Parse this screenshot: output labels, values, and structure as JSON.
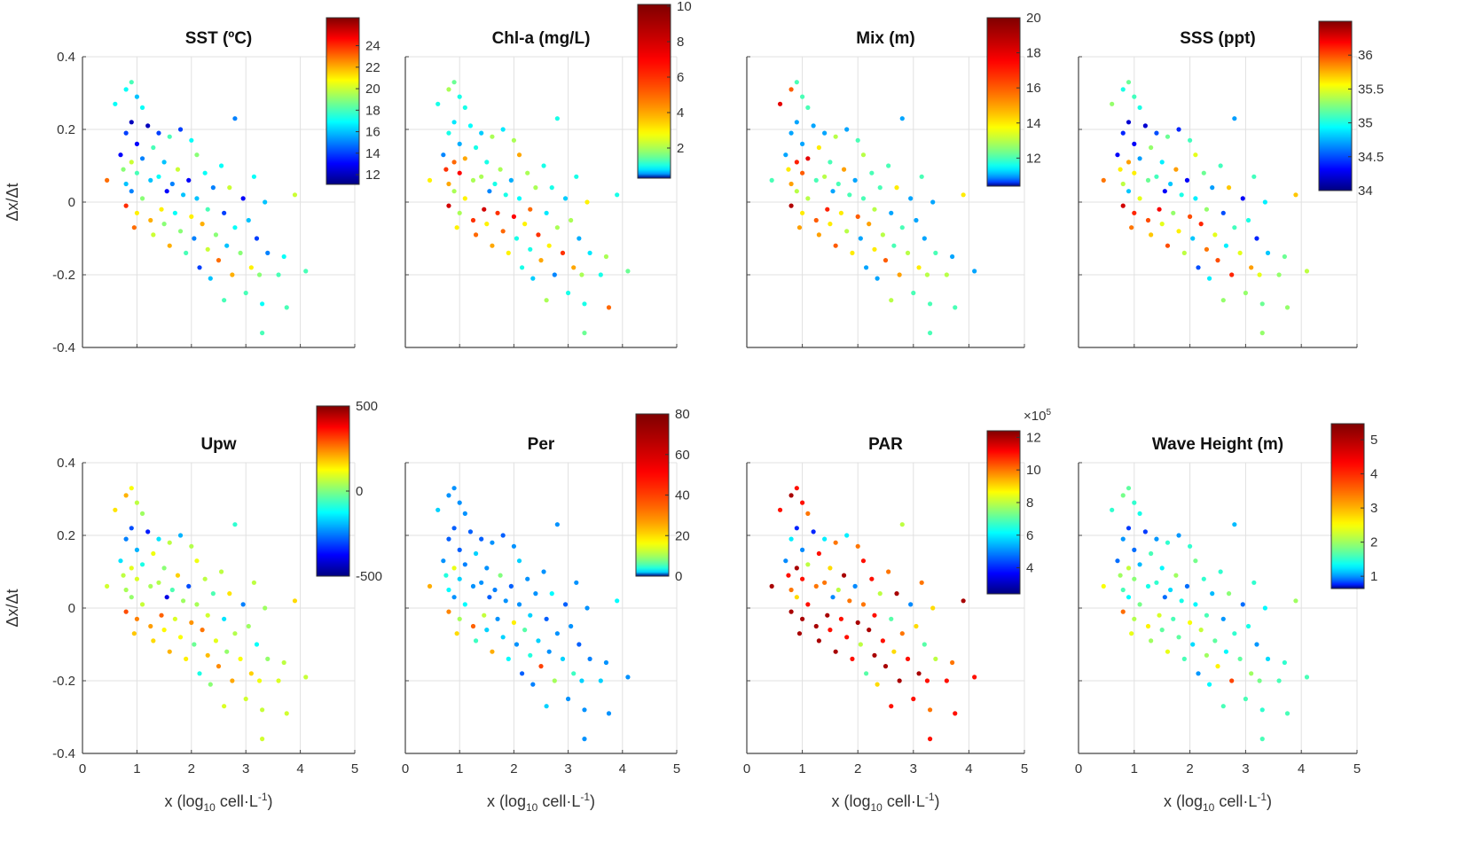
{
  "chart_data": [
    {
      "type": "scatter",
      "title": "SST (ºC)",
      "colorbar_ticks": [
        12,
        14,
        16,
        18,
        20,
        22,
        24
      ],
      "clim": [
        11.1,
        26.6
      ],
      "values": [
        23,
        17,
        13,
        19,
        17,
        14,
        16,
        24,
        18,
        12,
        20,
        15,
        23,
        16,
        13,
        18,
        21,
        17,
        15,
        19,
        12,
        16,
        22,
        18,
        20,
        14,
        17,
        21,
        16,
        19,
        13,
        18,
        22,
        15,
        17,
        20,
        14,
        19,
        16,
        18,
        13,
        17,
        21,
        15,
        19,
        16,
        14,
        22,
        17,
        18,
        20,
        16,
        15,
        19,
        23,
        17,
        14,
        18,
        16,
        20,
        22,
        15,
        17,
        19,
        13,
        18,
        16,
        21,
        17,
        14,
        19,
        17,
        18,
        16,
        15,
        18,
        17,
        18,
        20,
        18
      ]
    },
    {
      "type": "scatter",
      "title": "Chl-a (mg/L)",
      "colorbar_ticks": [
        2,
        4,
        6,
        8,
        10
      ],
      "clim": [
        0.3,
        10.1
      ],
      "values": [
        3,
        1,
        0.5,
        6,
        2,
        1,
        4,
        8,
        1.5,
        0.8,
        5,
        2,
        3,
        1,
        0.6,
        7,
        2,
        1,
        4,
        3,
        0.9,
        2,
        6,
        1,
        5,
        0.7,
        2,
        8,
        1,
        3,
        0.5,
        2,
        4,
        1,
        6,
        2,
        0.8,
        5,
        1,
        3,
        0.6,
        2,
        7,
        1,
        4,
        0.9,
        1,
        3,
        2,
        5,
        1,
        0.7,
        2,
        6,
        4,
        1,
        0.8,
        2,
        3,
        1,
        0.5,
        1,
        2,
        6,
        0.7,
        1,
        2,
        4,
        1,
        0.6,
        2,
        1,
        1.5,
        3,
        0.8,
        1,
        2,
        5,
        1,
        1.5
      ]
    },
    {
      "type": "scatter",
      "title": "Mix (m)",
      "colorbar_ticks": [
        12,
        14,
        16,
        18,
        20
      ],
      "clim": [
        10.4,
        20
      ],
      "values": [
        12,
        18,
        11,
        14,
        16,
        11,
        15,
        19,
        12,
        11,
        17,
        13,
        15,
        12,
        11,
        16,
        14,
        12,
        18,
        13,
        11,
        12,
        16,
        14,
        15,
        11,
        13,
        17,
        12,
        14,
        11,
        13,
        16,
        12,
        14,
        15,
        11,
        13,
        12,
        14,
        11,
        12,
        16,
        11,
        13,
        12,
        11,
        15,
        12,
        13,
        14,
        11,
        12,
        13,
        16,
        12,
        11,
        13,
        12,
        14,
        15,
        11,
        12,
        13,
        11,
        12,
        11,
        14,
        12,
        11,
        13,
        12,
        12,
        11,
        12,
        13,
        11,
        12,
        14,
        11
      ]
    },
    {
      "type": "scatter",
      "title": "SSS (ppt)",
      "colorbar_ticks": [
        34,
        34.5,
        35,
        35.5,
        36
      ],
      "clim": [
        34,
        36.5
      ],
      "values": [
        35.9,
        35.3,
        34.3,
        35.6,
        35.0,
        34.4,
        35.4,
        36.3,
        35.2,
        34.2,
        35.8,
        34.8,
        35.9,
        35.1,
        34.3,
        35.6,
        36.1,
        35.0,
        34.7,
        35.5,
        34.2,
        35.2,
        36.0,
        35.3,
        35.7,
        34.5,
        35.1,
        36.2,
        34.9,
        35.5,
        34.3,
        35.2,
        36.0,
        34.8,
        35.3,
        35.8,
        34.4,
        35.6,
        35.0,
        35.4,
        34.3,
        35.1,
        36.0,
        34.8,
        35.5,
        34.9,
        34.5,
        36.1,
        35.2,
        35.3,
        35.9,
        34.9,
        34.7,
        35.5,
        36.0,
        35.1,
        34.5,
        35.3,
        34.9,
        35.7,
        36.1,
        34.7,
        35.1,
        35.5,
        34.3,
        35.3,
        35.0,
        35.8,
        35.1,
        34.4,
        35.5,
        35.2,
        35.3,
        34.9,
        34.8,
        35.3,
        35.2,
        35.3,
        35.7,
        35.4
      ]
    },
    {
      "type": "scatter",
      "title": "Upw",
      "colorbar_ticks": [
        -500,
        0,
        500
      ],
      "clim": [
        -500,
        500
      ],
      "values": [
        80,
        150,
        -150,
        60,
        200,
        -250,
        40,
        300,
        120,
        -300,
        100,
        20,
        180,
        60,
        -200,
        90,
        250,
        30,
        -100,
        70,
        -350,
        40,
        220,
        110,
        160,
        -150,
        50,
        280,
        10,
        130,
        -400,
        60,
        200,
        -50,
        90,
        170,
        -200,
        120,
        30,
        140,
        -300,
        50,
        230,
        -20,
        110,
        40,
        -100,
        260,
        60,
        80,
        190,
        10,
        -50,
        100,
        240,
        60,
        -150,
        90,
        20,
        150,
        210,
        -80,
        50,
        120,
        -250,
        80,
        30,
        170,
        60,
        -120,
        110,
        70,
        80,
        30,
        20,
        90,
        60,
        80,
        160,
        70
      ]
    },
    {
      "type": "scatter",
      "title": "Per",
      "colorbar_ticks": [
        0,
        20,
        40,
        60,
        80
      ],
      "clim": [
        0,
        80
      ],
      "values": [
        25,
        2,
        1,
        4,
        1,
        0.5,
        3,
        30,
        1,
        0.5,
        15,
        1,
        20,
        1,
        0.5,
        2,
        10,
        1,
        0.8,
        3,
        0.5,
        1,
        35,
        2,
        5,
        0.5,
        1,
        12,
        1,
        2,
        0.5,
        1,
        25,
        0.8,
        1,
        8,
        0.5,
        2,
        1,
        3,
        0.5,
        1,
        18,
        1,
        2,
        1,
        0.5,
        6,
        1,
        2,
        4,
        0.8,
        1,
        2,
        40,
        1,
        0.5,
        2,
        1,
        3,
        10,
        1,
        1,
        2,
        0.5,
        1,
        1,
        5,
        1,
        0.5,
        2,
        1,
        1,
        1,
        0.8,
        2,
        1,
        1,
        3,
        1
      ]
    },
    {
      "type": "scatter",
      "title": "PAR",
      "colorbar_ticks": [
        4,
        6,
        8,
        10,
        12
      ],
      "clim": [
        2.4,
        12.4
      ],
      "colorbar_exponent_label": "×10",
      "colorbar_exponent": "5",
      "values": [
        12,
        11,
        5,
        11,
        12,
        6,
        10,
        12,
        11,
        4,
        12,
        9,
        12,
        11,
        5,
        11,
        12,
        10,
        8,
        11,
        4,
        10,
        12,
        11,
        12,
        6,
        10,
        12,
        9,
        11,
        5,
        10,
        12,
        8,
        11,
        12,
        6,
        11,
        10,
        11,
        5,
        10,
        12,
        8,
        11,
        10,
        7,
        12,
        11,
        11,
        12,
        9,
        8,
        11,
        12,
        10,
        7,
        11,
        9,
        12,
        12,
        8,
        10,
        11,
        5,
        11,
        9,
        12,
        10,
        7,
        11,
        10,
        11,
        9,
        8,
        11,
        10,
        11,
        12,
        11
      ]
    },
    {
      "type": "scatter",
      "title": "Wave Height (m)",
      "colorbar_ticks": [
        1,
        2,
        3,
        4,
        5
      ],
      "clim": [
        0.64,
        5.47
      ],
      "values": [
        2.5,
        1.5,
        0.9,
        2,
        1.8,
        1,
        1.6,
        3.5,
        1.7,
        0.8,
        2.2,
        1.3,
        2.4,
        1.5,
        0.9,
        1.9,
        2.1,
        1.4,
        1.1,
        1.8,
        0.8,
        1.4,
        2.6,
        1.6,
        2,
        1,
        1.5,
        2.3,
        1.3,
        1.7,
        0.9,
        1.5,
        2.4,
        1.2,
        1.6,
        2,
        1,
        1.7,
        1.4,
        1.6,
        0.9,
        1.5,
        2.5,
        1.2,
        1.8,
        1.3,
        1,
        2.2,
        1.5,
        1.6,
        2,
        1.3,
        1.1,
        1.7,
        2.6,
        1.5,
        1,
        1.6,
        1.3,
        1.9,
        3.8,
        1.1,
        1.5,
        1.7,
        0.9,
        1.6,
        1.4,
        2,
        1.5,
        1,
        1.8,
        1.5,
        1.6,
        1.3,
        1.2,
        1.6,
        1.5,
        1.6,
        2,
        1.6
      ]
    }
  ],
  "shared": {
    "points_xy": [
      [
        0.45,
        0.06
      ],
      [
        0.6,
        0.27
      ],
      [
        0.7,
        0.13
      ],
      [
        0.75,
        0.09
      ],
      [
        0.8,
        0.31
      ],
      [
        0.8,
        0.19
      ],
      [
        0.8,
        0.05
      ],
      [
        0.8,
        -0.01
      ],
      [
        0.9,
        0.33
      ],
      [
        0.9,
        0.22
      ],
      [
        0.9,
        0.11
      ],
      [
        0.9,
        0.03
      ],
      [
        0.95,
        -0.07
      ],
      [
        1.0,
        0.29
      ],
      [
        1.0,
        0.16
      ],
      [
        1.0,
        0.08
      ],
      [
        1.0,
        -0.03
      ],
      [
        1.1,
        0.26
      ],
      [
        1.1,
        0.12
      ],
      [
        1.1,
        0.01
      ],
      [
        1.2,
        0.21
      ],
      [
        1.25,
        0.06
      ],
      [
        1.25,
        -0.05
      ],
      [
        1.3,
        0.15
      ],
      [
        1.3,
        -0.09
      ],
      [
        1.4,
        0.19
      ],
      [
        1.4,
        0.07
      ],
      [
        1.45,
        -0.02
      ],
      [
        1.5,
        0.11
      ],
      [
        1.5,
        -0.06
      ],
      [
        1.55,
        0.03
      ],
      [
        1.6,
        0.18
      ],
      [
        1.6,
        -0.12
      ],
      [
        1.65,
        0.05
      ],
      [
        1.7,
        -0.03
      ],
      [
        1.75,
        0.09
      ],
      [
        1.8,
        0.2
      ],
      [
        1.8,
        -0.08
      ],
      [
        1.85,
        0.02
      ],
      [
        1.9,
        -0.14
      ],
      [
        1.95,
        0.06
      ],
      [
        2.0,
        0.17
      ],
      [
        2.0,
        -0.04
      ],
      [
        2.05,
        -0.1
      ],
      [
        2.1,
        0.13
      ],
      [
        2.1,
        0.01
      ],
      [
        2.15,
        -0.18
      ],
      [
        2.2,
        -0.06
      ],
      [
        2.25,
        0.08
      ],
      [
        2.3,
        -0.02
      ],
      [
        2.3,
        -0.13
      ],
      [
        2.35,
        -0.21
      ],
      [
        2.4,
        0.04
      ],
      [
        2.45,
        -0.09
      ],
      [
        2.5,
        -0.16
      ],
      [
        2.55,
        0.1
      ],
      [
        2.6,
        -0.03
      ],
      [
        2.6,
        -0.27
      ],
      [
        2.65,
        -0.12
      ],
      [
        2.7,
        0.04
      ],
      [
        2.75,
        -0.2
      ],
      [
        2.8,
        0.23
      ],
      [
        2.8,
        -0.07
      ],
      [
        2.9,
        -0.14
      ],
      [
        2.95,
        0.01
      ],
      [
        3.0,
        -0.25
      ],
      [
        3.05,
        -0.05
      ],
      [
        3.1,
        -0.18
      ],
      [
        3.15,
        0.07
      ],
      [
        3.2,
        -0.1
      ],
      [
        3.25,
        -0.2
      ],
      [
        3.3,
        -0.28
      ],
      [
        3.3,
        -0.36
      ],
      [
        3.35,
        0.0
      ],
      [
        3.4,
        -0.14
      ],
      [
        3.6,
        -0.2
      ],
      [
        3.7,
        -0.15
      ],
      [
        3.75,
        -0.29
      ],
      [
        3.9,
        0.02
      ],
      [
        4.1,
        -0.19
      ]
    ],
    "xlabel_prefix": "x (log",
    "xlabel_sub": "10",
    "xlabel_mid": " cell·L",
    "xlabel_sup": "-1",
    "xlabel_end": ")",
    "ylabel": "Δx/Δt",
    "xlim": [
      0,
      5
    ],
    "ylim": [
      -0.4,
      0.4
    ],
    "xticks": [
      0,
      1,
      2,
      3,
      4,
      5
    ],
    "yticks": [
      -0.4,
      -0.2,
      0,
      0.2,
      0.4
    ],
    "xtick_labels": [
      "0",
      "1",
      "2",
      "3",
      "4",
      "5"
    ],
    "ytick_labels": [
      "-0.4",
      "-0.2",
      "0",
      "0.2",
      "0.4"
    ],
    "grid": true,
    "layout": "2 rows x 4 columns"
  }
}
